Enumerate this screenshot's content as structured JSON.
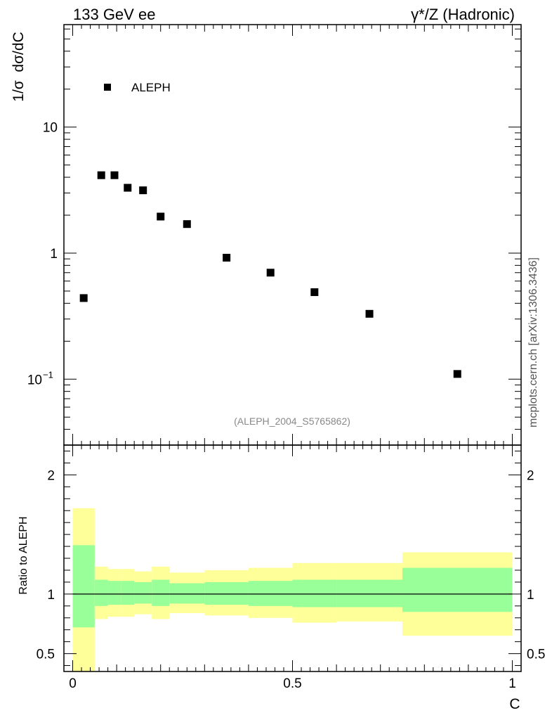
{
  "header": {
    "left": "133 GeV ee",
    "right": "γ*/Z (Hadronic)"
  },
  "watermark": "mcplots.cern.ch [arXiv:1306.3436]",
  "chart_data": [
    {
      "type": "scatter",
      "ylabel": "1/σ  dσ/dC",
      "yscale": "log",
      "ylim": [
        0.03,
        65
      ],
      "xlim": [
        -0.02,
        1.02
      ],
      "yticks_major": [
        {
          "value": 10,
          "label": "10"
        },
        {
          "value": 1,
          "label": "1"
        },
        {
          "value": 0.1,
          "label": "10",
          "exp": "−1"
        }
      ],
      "legend": {
        "label": "ALEPH",
        "placement": "top-left",
        "color": "#000000"
      },
      "annotation": "(ALEPH_2004_S5765862)",
      "series": [
        {
          "name": "ALEPH",
          "x": [
            0.025,
            0.065,
            0.095,
            0.125,
            0.16,
            0.2,
            0.26,
            0.35,
            0.45,
            0.55,
            0.675,
            0.875
          ],
          "y": [
            0.44,
            4.15,
            4.15,
            3.3,
            3.15,
            1.95,
            1.7,
            0.92,
            0.7,
            0.49,
            0.33,
            0.11
          ]
        }
      ]
    },
    {
      "type": "area",
      "ylabel": "Ratio to ALEPH",
      "xlabel": "C",
      "xlim": [
        -0.02,
        1.02
      ],
      "ylim": [
        0.35,
        2.25
      ],
      "yticks_major": [
        {
          "value": 2,
          "label": "2"
        },
        {
          "value": 1,
          "label": "1"
        },
        {
          "value": 0.5,
          "label": "0.5"
        }
      ],
      "xticks_major": [
        {
          "value": 0,
          "label": "0"
        },
        {
          "value": 0.5,
          "label": "0.5"
        },
        {
          "value": 1,
          "label": "1"
        }
      ],
      "bands": {
        "colors": {
          "outer": "#ffff99",
          "inner": "#99ff99",
          "line": "#000000"
        },
        "bins": [
          {
            "x0": 0.0,
            "x1": 0.05,
            "outer": [
              0.0,
              1.72
            ],
            "inner": [
              0.72,
              1.41
            ]
          },
          {
            "x0": 0.05,
            "x1": 0.08,
            "outer": [
              0.79,
              1.23
            ],
            "inner": [
              0.9,
              1.12
            ]
          },
          {
            "x0": 0.08,
            "x1": 0.11,
            "outer": [
              0.81,
              1.21
            ],
            "inner": [
              0.91,
              1.11
            ]
          },
          {
            "x0": 0.11,
            "x1": 0.14,
            "outer": [
              0.81,
              1.21
            ],
            "inner": [
              0.91,
              1.11
            ]
          },
          {
            "x0": 0.14,
            "x1": 0.18,
            "outer": [
              0.83,
              1.19
            ],
            "inner": [
              0.92,
              1.1
            ]
          },
          {
            "x0": 0.18,
            "x1": 0.22,
            "outer": [
              0.79,
              1.23
            ],
            "inner": [
              0.9,
              1.12
            ]
          },
          {
            "x0": 0.22,
            "x1": 0.3,
            "outer": [
              0.84,
              1.18
            ],
            "inner": [
              0.92,
              1.09
            ]
          },
          {
            "x0": 0.3,
            "x1": 0.4,
            "outer": [
              0.82,
              1.2
            ],
            "inner": [
              0.91,
              1.1
            ]
          },
          {
            "x0": 0.4,
            "x1": 0.5,
            "outer": [
              0.8,
              1.22
            ],
            "inner": [
              0.9,
              1.11
            ]
          },
          {
            "x0": 0.5,
            "x1": 0.6,
            "outer": [
              0.76,
              1.26
            ],
            "inner": [
              0.89,
              1.12
            ]
          },
          {
            "x0": 0.6,
            "x1": 0.75,
            "outer": [
              0.77,
              1.26
            ],
            "inner": [
              0.89,
              1.12
            ]
          },
          {
            "x0": 0.75,
            "x1": 1.0,
            "outer": [
              0.65,
              1.35
            ],
            "inner": [
              0.85,
              1.22
            ]
          }
        ]
      }
    }
  ]
}
